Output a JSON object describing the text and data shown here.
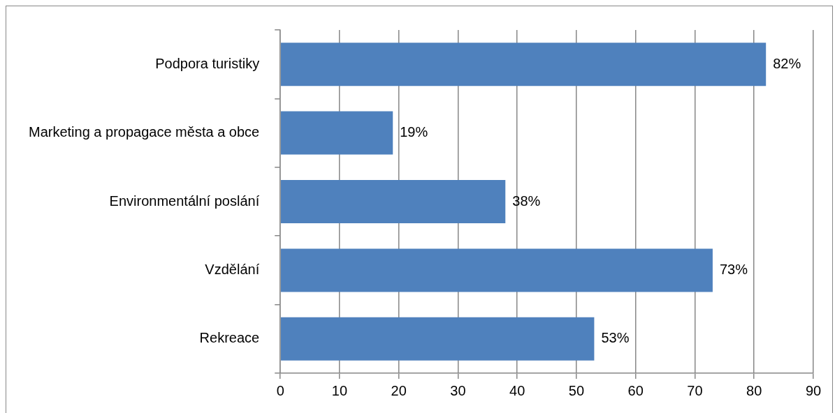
{
  "chart_data": {
    "type": "bar",
    "orientation": "horizontal",
    "categories": [
      "Podpora turistiky",
      "Marketing a propagace města a obce",
      "Environmentální poslání",
      "Vzdělání",
      "Rekreace"
    ],
    "values": [
      82,
      19,
      38,
      73,
      53
    ],
    "value_labels": [
      "82%",
      "19%",
      "38%",
      "73%",
      "53%"
    ],
    "color": "#4f81bd",
    "xlim": [
      0,
      90
    ],
    "xticks": [
      0,
      10,
      20,
      30,
      40,
      50,
      60,
      70,
      80,
      90
    ],
    "grid": "x",
    "legend": false
  }
}
